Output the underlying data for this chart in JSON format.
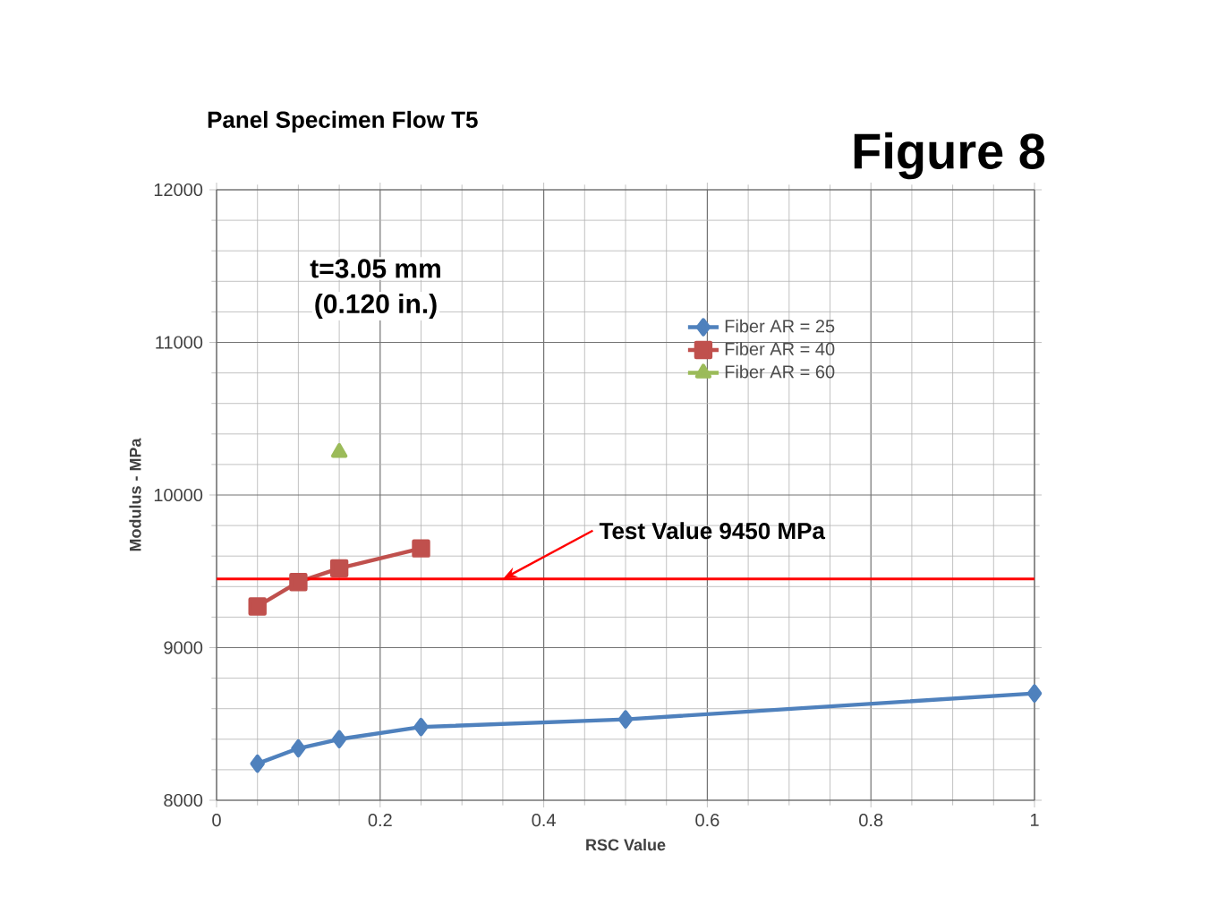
{
  "chart_data": {
    "type": "line",
    "title": "Panel Specimen Flow T5",
    "xlabel": "RSC Value",
    "ylabel": "Modulus - MPa",
    "xlim": [
      0,
      1
    ],
    "ylim": [
      8000,
      12000
    ],
    "xticks": [
      0,
      0.2,
      0.4,
      0.6,
      0.8,
      1
    ],
    "yticks": [
      8000,
      9000,
      10000,
      11000,
      12000
    ],
    "grid": true,
    "legend": "right",
    "series": [
      {
        "name": "Fiber AR = 25",
        "color": "#4f81bd",
        "marker": "diamond",
        "x": [
          0.05,
          0.1,
          0.15,
          0.25,
          0.5,
          1
        ],
        "values": [
          8240,
          8340,
          8400,
          8480,
          8530,
          8700
        ]
      },
      {
        "name": "Fiber AR = 40",
        "color": "#c0504d",
        "marker": "square",
        "x": [
          0.05,
          0.1,
          0.15,
          0.25
        ],
        "values": [
          9270,
          9430,
          9520,
          9650
        ]
      },
      {
        "name": "Fiber AR = 60",
        "color": "#9bbb59",
        "marker": "triangle",
        "x": [
          0.15
        ],
        "values": [
          10280
        ]
      }
    ],
    "ref_lines": [
      {
        "axis": "y",
        "value": 9450,
        "label": "Test Value 9450 MPa",
        "color": "#ff0000"
      }
    ],
    "annotations": [
      "Figure 8",
      "t=3.05 mm",
      "(0.120 in.)"
    ]
  }
}
